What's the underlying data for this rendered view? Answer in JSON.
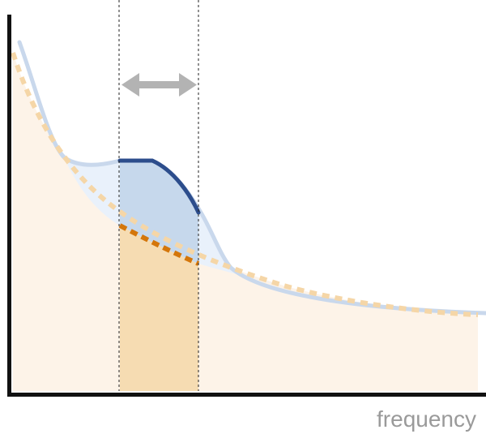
{
  "diagram": {
    "xlabel": "frequency",
    "colors": {
      "axis": "#111111",
      "baseline_fill": "#fdf3e8",
      "baseline_dotted_light": "#f5d6a7",
      "baseline_dotted_dark": "#d4760a",
      "band_fill": "#f6dcb2",
      "spectrum_line": "#c9d8ec",
      "spectrum_fill": "#e9f1fb",
      "highlight_fill": "#c6d8ec",
      "highlight_line": "#2c4d8c",
      "arrow": "#b3b3b3",
      "dashed_guides": "#222222",
      "label": "#9a9a9a"
    }
  }
}
